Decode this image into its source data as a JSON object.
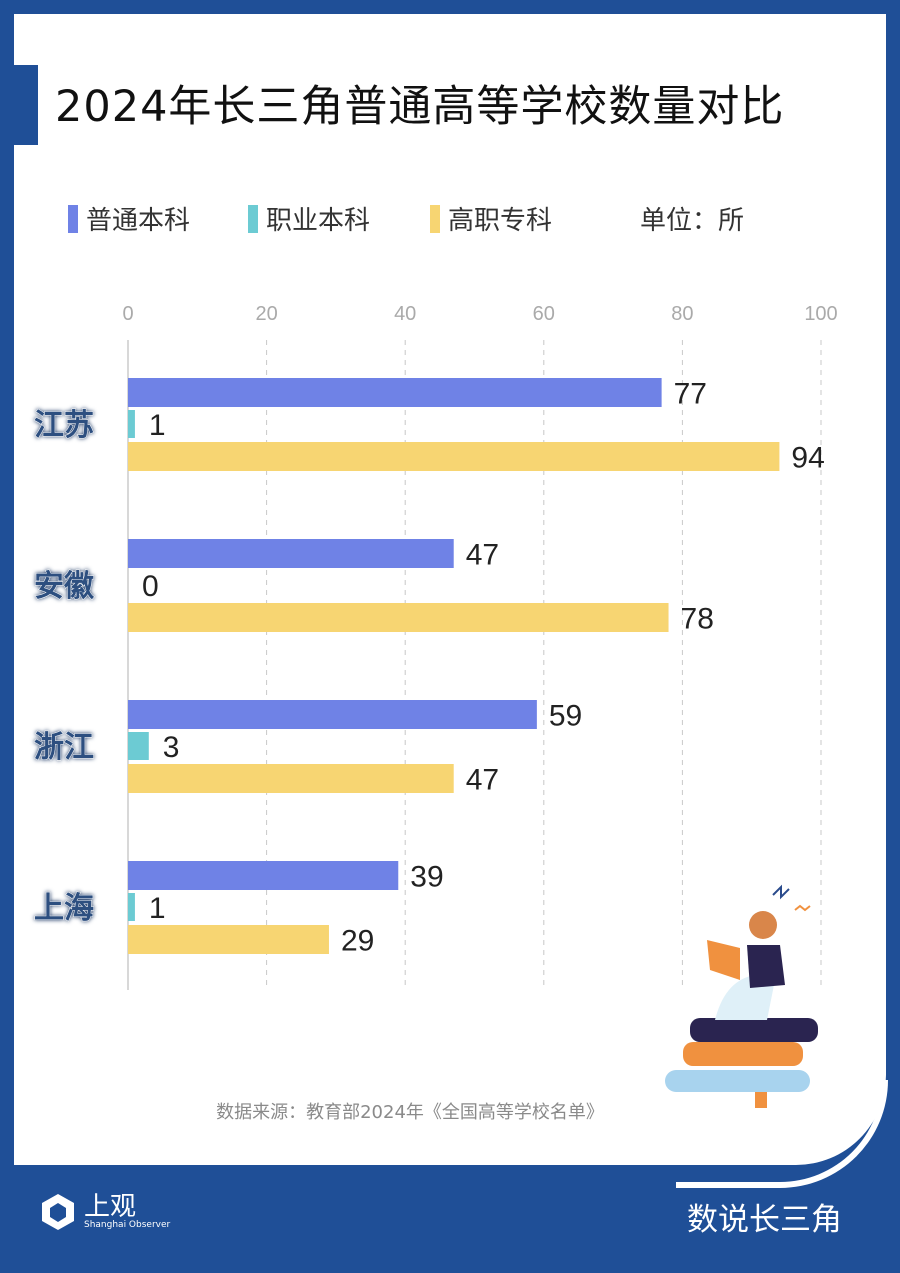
{
  "title": "2024年长三角普通高等学校数量对比",
  "unit": "单位：所",
  "source": "数据来源：教育部2024年《全国高等学校名单》",
  "footer": {
    "logo_cn": "上观",
    "logo_en": "Shanghai Observer",
    "brand": "数说长三角"
  },
  "colors": {
    "background": "#1f4f97",
    "series": [
      "#6f82e6",
      "#6ccbd3",
      "#f7d572"
    ]
  },
  "chart_data": {
    "type": "bar",
    "orientation": "horizontal",
    "categories": [
      "江苏",
      "安徽",
      "浙江",
      "上海"
    ],
    "series": [
      {
        "name": "普通本科",
        "values": [
          77,
          47,
          59,
          39
        ]
      },
      {
        "name": "职业本科",
        "values": [
          1,
          0,
          3,
          1
        ]
      },
      {
        "name": "高职专科",
        "values": [
          94,
          78,
          47,
          29
        ]
      }
    ],
    "xlim": [
      0,
      100
    ],
    "xticks": [
      "0",
      "20",
      "40",
      "60",
      "80",
      "100"
    ],
    "grid": true,
    "legend": "top-left"
  }
}
